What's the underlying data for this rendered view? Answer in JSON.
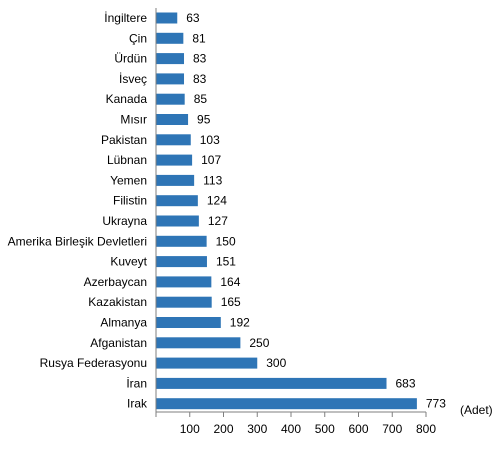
{
  "chart_data": {
    "type": "bar",
    "orientation": "horizontal",
    "categories": [
      "İngiltere",
      "Çin",
      "Ürdün",
      "İsveç",
      "Kanada",
      "Mısır",
      "Pakistan",
      "Lübnan",
      "Yemen",
      "Filistin",
      "Ukrayna",
      "Amerika Birleşik Devletleri",
      "Kuveyt",
      "Azerbaycan",
      "Kazakistan",
      "Almanya",
      "Afganistan",
      "Rusya Federasyonu",
      "İran",
      "Irak"
    ],
    "values": [
      63,
      81,
      83,
      83,
      85,
      95,
      103,
      107,
      113,
      124,
      127,
      150,
      151,
      164,
      165,
      192,
      250,
      300,
      683,
      773
    ],
    "value_labels": [
      "63",
      "81",
      "83",
      "83",
      "85",
      "95",
      "103",
      "107",
      "113",
      "124",
      "127",
      "150",
      "151",
      "164",
      "165",
      "192",
      "250",
      "300",
      "683",
      "773"
    ],
    "xlim": [
      0,
      800
    ],
    "x_ticks": [
      100,
      200,
      300,
      400,
      500,
      600,
      700,
      800
    ],
    "x_tick_labels": [
      "100",
      "200",
      "300",
      "400",
      "500",
      "600",
      "700",
      "800"
    ],
    "unit_label": "(Adet)",
    "bar_color": "#2e75b6",
    "grid": false,
    "legend": "none"
  }
}
